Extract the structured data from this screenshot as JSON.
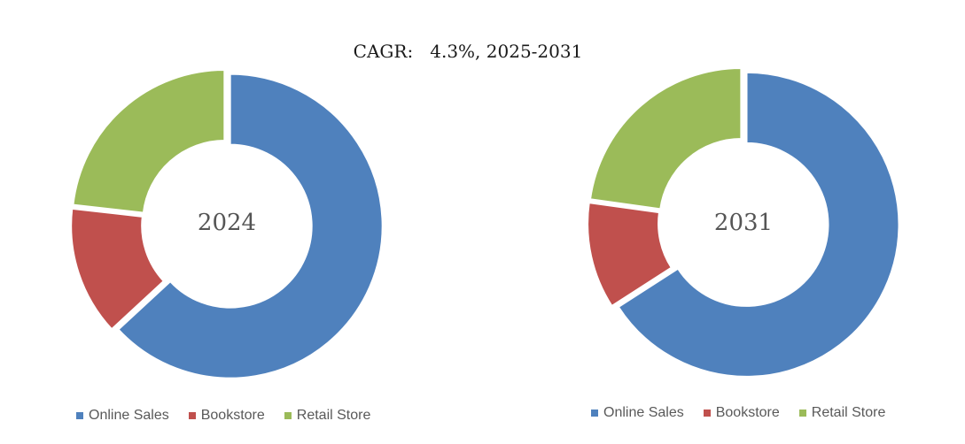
{
  "chart_title": "CAGR:   4.3%, 2025-2031",
  "colors": {
    "Online Sales": "#4f81bd",
    "Bookstore": "#c0504d",
    "Retail Store": "#9bbb59"
  },
  "chart_data": [
    {
      "type": "pie",
      "donut": true,
      "center_label": "2024",
      "categories": [
        "Online Sales",
        "Bookstore",
        "Retail Store"
      ],
      "values": [
        63.1,
        13.7,
        23.2
      ],
      "legend": "bottom"
    },
    {
      "type": "pie",
      "donut": true,
      "center_label": "2031",
      "categories": [
        "Online Sales",
        "Bookstore",
        "Retail Store"
      ],
      "values": [
        65.9,
        11.3,
        22.8
      ],
      "legend": "bottom"
    }
  ]
}
